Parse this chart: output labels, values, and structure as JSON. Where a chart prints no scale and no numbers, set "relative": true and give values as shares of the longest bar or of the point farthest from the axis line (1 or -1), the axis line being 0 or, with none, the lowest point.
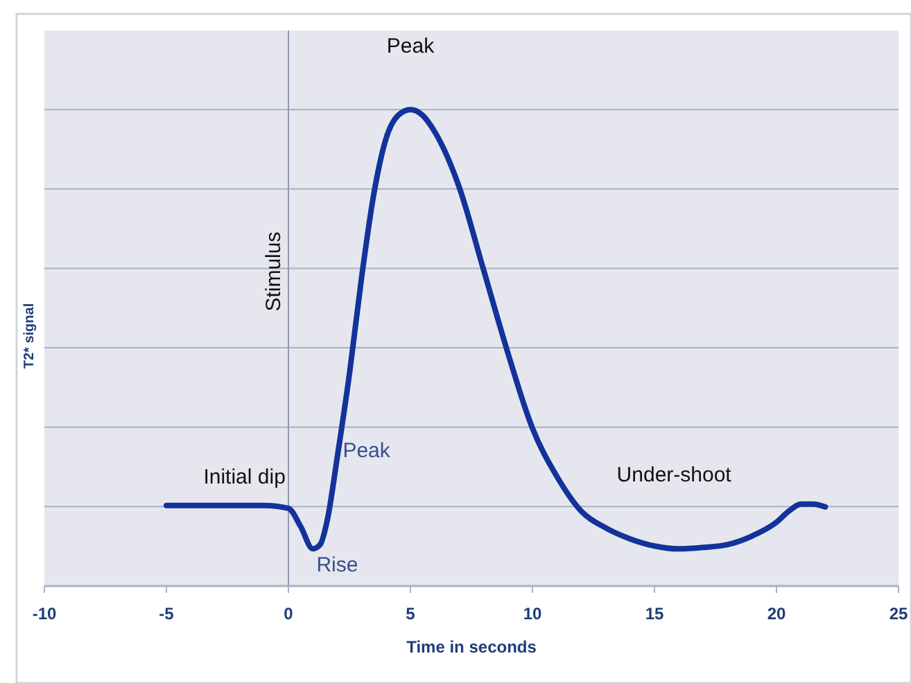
{
  "chart_data": {
    "type": "line",
    "relative": true,
    "xlabel": "Time in seconds",
    "ylabel": "T2* signal",
    "xlim": [
      -10,
      25
    ],
    "xticks": [
      -10,
      -5,
      0,
      5,
      10,
      15,
      20,
      25
    ],
    "grid": "y",
    "line_style": "solid",
    "marker": "none",
    "series": [
      {
        "color": "#13329a",
        "x": [
          -5,
          -1,
          0,
          0.5,
          1,
          1.3,
          1.6,
          2,
          2.5,
          3,
          3.5,
          4,
          4.5,
          5,
          5.5,
          6,
          7,
          8,
          9,
          10,
          11,
          12,
          13,
          14,
          15,
          16,
          17,
          18,
          19,
          20,
          20.5,
          21,
          21.5,
          22
        ],
        "values": [
          0.169,
          0.169,
          0.163,
          0.125,
          0.078,
          0.087,
          0.14,
          0.27,
          0.445,
          0.648,
          0.823,
          0.939,
          0.988,
          1,
          0.988,
          0.953,
          0.837,
          0.663,
          0.488,
          0.331,
          0.23,
          0.157,
          0.122,
          0.099,
          0.084,
          0.078,
          0.081,
          0.087,
          0.105,
          0.134,
          0.157,
          0.172,
          0.172,
          0.166
        ]
      }
    ],
    "ref_lines": [
      {
        "axis": "x",
        "value": 0,
        "label": "Stimulus",
        "color": "#8e98b0"
      }
    ],
    "annotations": [
      "Peak",
      "Initial dip",
      "Peak",
      "Rise",
      "Under-shoot"
    ]
  }
}
